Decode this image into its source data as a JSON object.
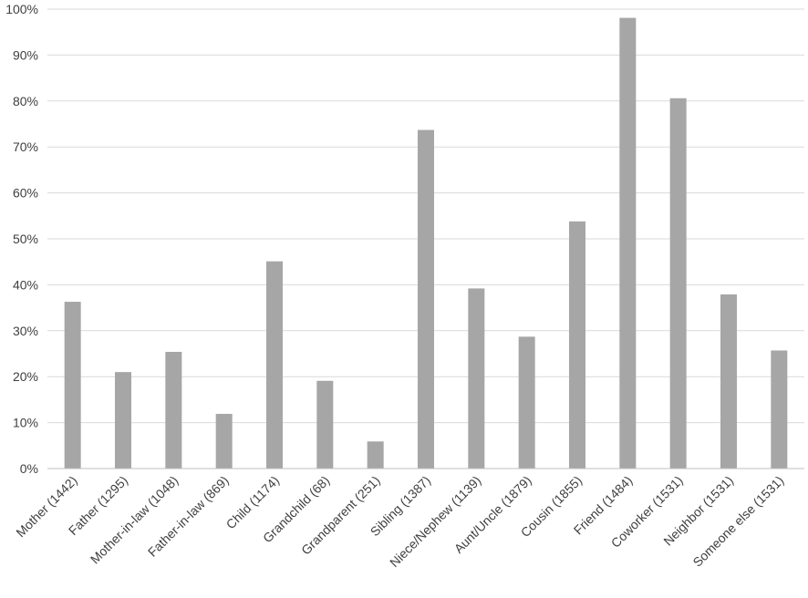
{
  "chart_data": {
    "type": "bar",
    "title": "",
    "xlabel": "",
    "ylabel": "",
    "ylim": [
      0,
      100
    ],
    "y_ticks": [
      "0%",
      "10%",
      "20%",
      "30%",
      "40%",
      "50%",
      "60%",
      "70%",
      "80%",
      "90%",
      "100%"
    ],
    "grid": true,
    "legend": "none",
    "bar_color": "#a6a6a6",
    "categories": [
      "Mother (1442)",
      "Father (1295)",
      "Mother-in-law (1048)",
      "Father-in-law (869)",
      "Child (1174)",
      "Grandchild (68)",
      "Grandparent (251)",
      "Sibling (1387)",
      "Niece/Nephew (1139)",
      "Aunt/Uncle (1879)",
      "Cousin (1855)",
      "Friend (1484)",
      "Coworker (1531)",
      "Neighbor (1531)",
      "Someone else (1531)"
    ],
    "values": [
      36.3,
      21.0,
      25.4,
      11.9,
      45.1,
      19.1,
      5.9,
      73.7,
      39.2,
      28.7,
      53.8,
      98.1,
      80.6,
      37.9,
      25.7
    ]
  }
}
